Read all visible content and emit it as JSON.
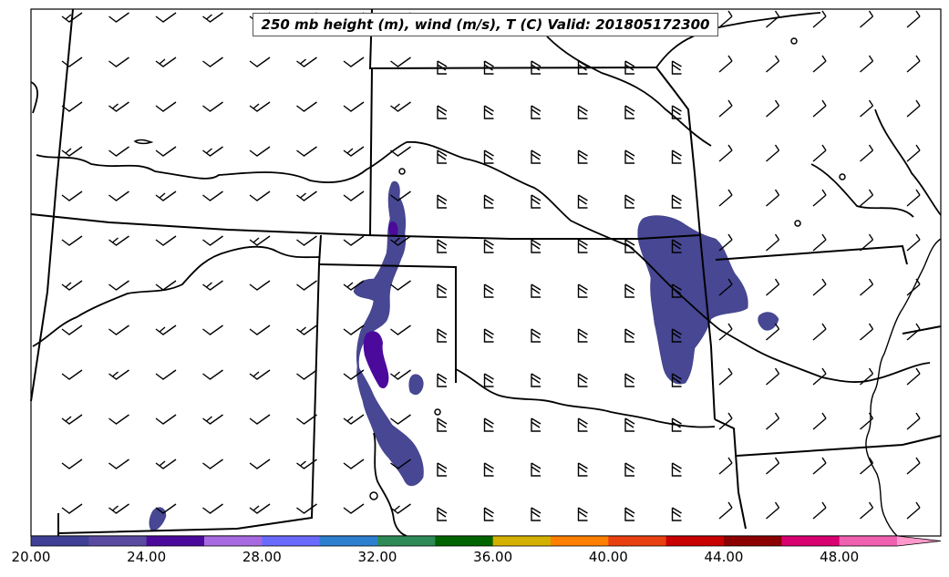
{
  "title": "250 mb height (m), wind (m/s), T (C) Valid: 201805172300",
  "colorbar": {
    "tick_labels": [
      "20.00",
      "24.00",
      "28.00",
      "32.00",
      "36.00",
      "40.00",
      "44.00",
      "48.00"
    ],
    "colors": [
      "#3f3f96",
      "#5a4aa0",
      "#4b0a9c",
      "#a86ae0",
      "#6a6aff",
      "#2e7fcf",
      "#2e8b57",
      "#006400",
      "#d4b000",
      "#ff7f00",
      "#e84010",
      "#c80000",
      "#8b0000",
      "#d80070",
      "#f060b0",
      "#ff99cc"
    ],
    "extend": "max"
  },
  "legend": {
    "temperature_fill_color": "#474793",
    "temperature_core_color": "#4b0a9c"
  }
}
